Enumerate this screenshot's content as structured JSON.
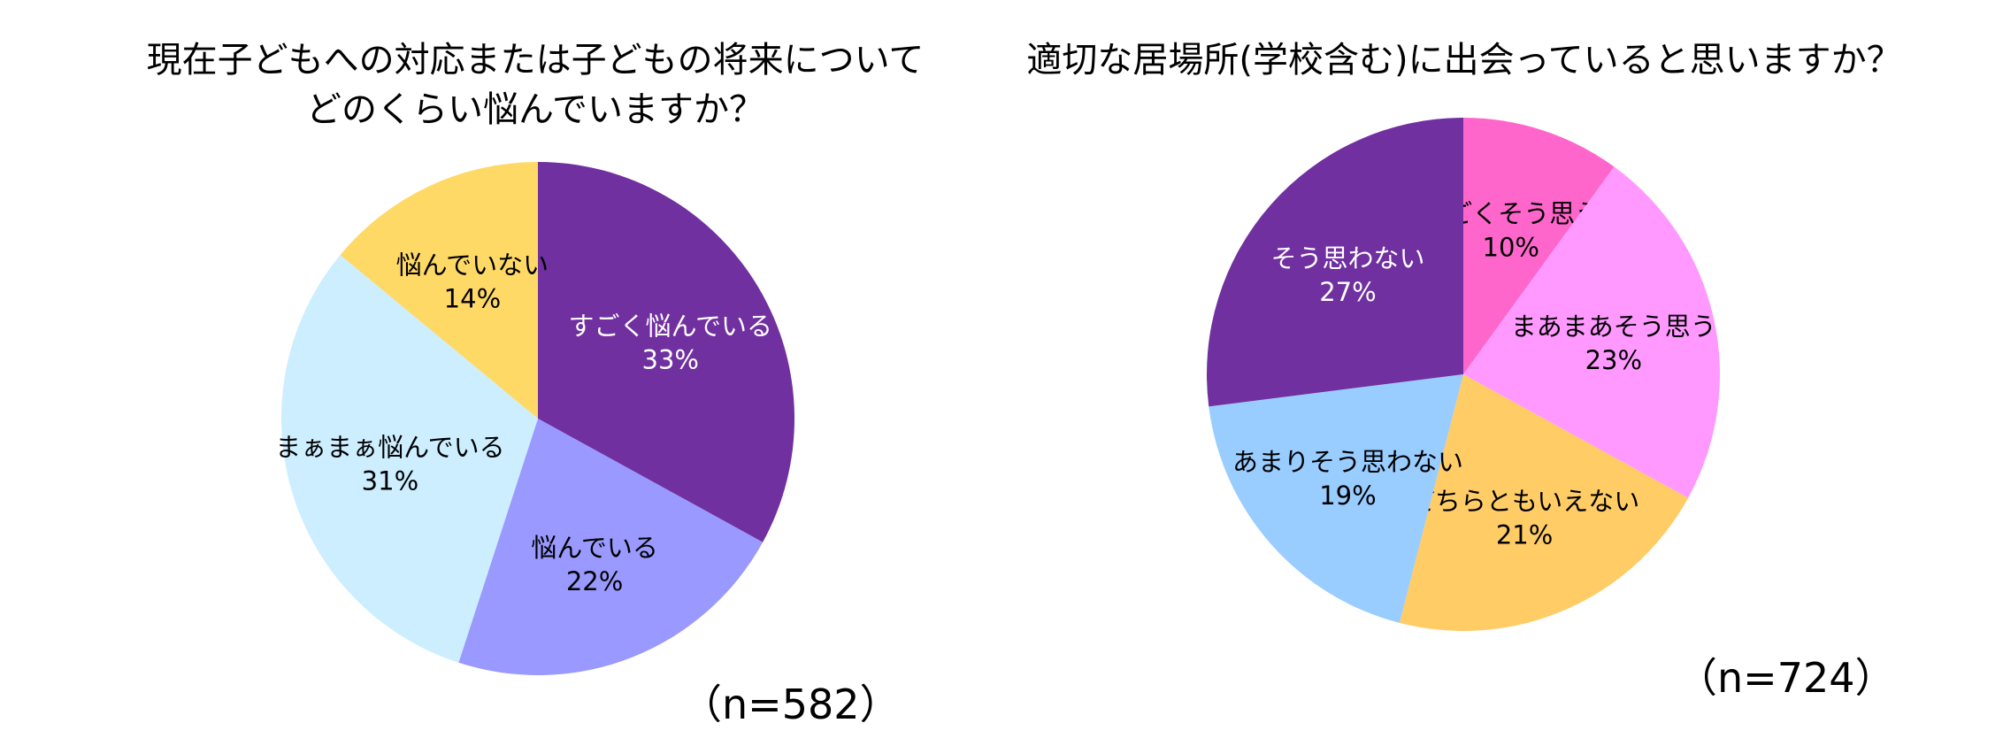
{
  "chart_data": [
    {
      "type": "pie",
      "title": "現在子どもへの対応または子どもの将来について\nどのくらい悩んでいますか？",
      "n_label": "（n=582）",
      "start_angle_deg": 0,
      "slices": [
        {
          "label": "すごく悩んでいる",
          "value": 33,
          "value_label": "33%",
          "color": "#7030a0",
          "text_color": "#ffffff"
        },
        {
          "label": "悩んでいる",
          "value": 22,
          "value_label": "22%",
          "color": "#9999ff",
          "text_color": "#000000"
        },
        {
          "label": "まぁまぁ悩んでいる",
          "value": 31,
          "value_label": "31%",
          "color": "#cceeff",
          "text_color": "#000000"
        },
        {
          "label": "悩んでいない",
          "value": 14,
          "value_label": "14%",
          "color": "#ffd966",
          "text_color": "#000000"
        }
      ]
    },
    {
      "type": "pie",
      "title": "適切な居場所(学校含む)に出会っていると思いますか？",
      "n_label": "（n=724）",
      "start_angle_deg": 0,
      "slices": [
        {
          "label": "すごくそう思う",
          "value": 10,
          "value_label": "10%",
          "color": "#ff66cc",
          "text_color": "#000000"
        },
        {
          "label": "まあまあそう思う",
          "value": 23,
          "value_label": "23%",
          "color": "#ff99ff",
          "text_color": "#000000"
        },
        {
          "label": "どちらともいえない",
          "value": 21,
          "value_label": "21%",
          "color": "#ffcc66",
          "text_color": "#000000"
        },
        {
          "label": "あまりそう思わない",
          "value": 19,
          "value_label": "19%",
          "color": "#99ccff",
          "text_color": "#000000"
        },
        {
          "label": "そう思わない",
          "value": 27,
          "value_label": "27%",
          "color": "#7030a0",
          "text_color": "#ffffff"
        }
      ]
    }
  ]
}
